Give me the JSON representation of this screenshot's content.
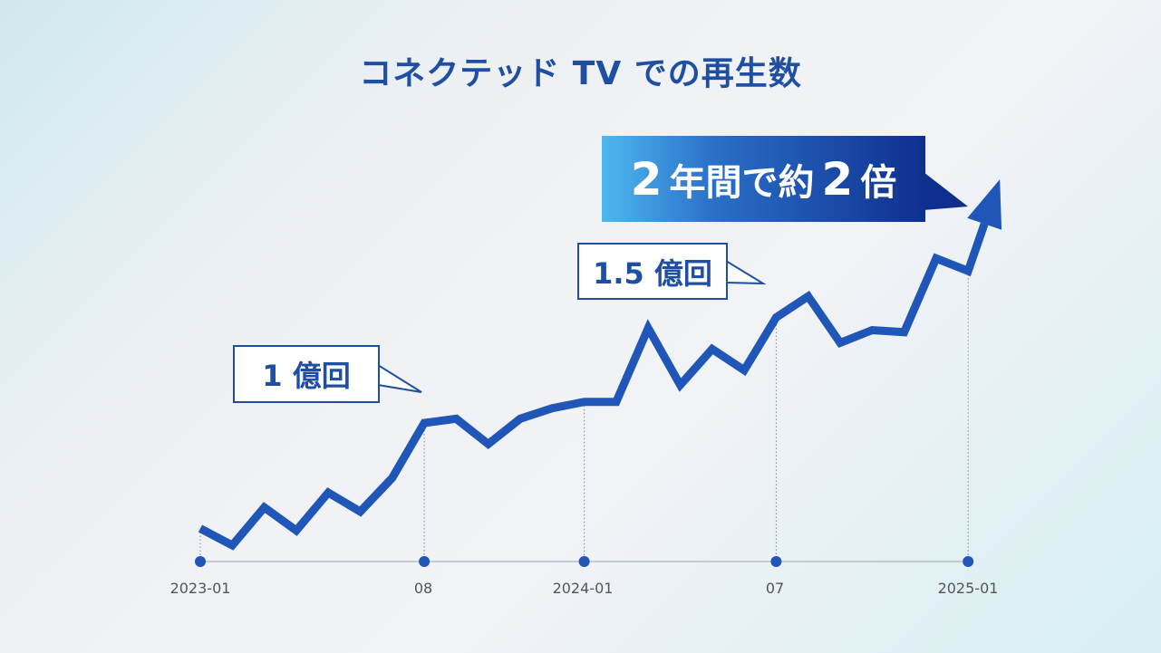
{
  "title": "コネクテッド TV での再生数",
  "chart_data": {
    "type": "line",
    "title": "コネクテッド TV での再生数",
    "xlabel": "",
    "ylabel": "",
    "x_ticks": [
      "2023-01",
      "08",
      "2024-01",
      "07",
      "2025-01"
    ],
    "x": [
      "2023-01",
      "2023-02",
      "2023-03",
      "2023-04",
      "2023-05",
      "2023-06",
      "2023-07",
      "2023-08",
      "2023-09",
      "2023-10",
      "2023-11",
      "2023-12",
      "2024-01",
      "2024-02",
      "2024-03",
      "2024-04",
      "2024-05",
      "2024-06",
      "2024-07",
      "2024-08",
      "2024-09",
      "2024-10",
      "2024-11",
      "2024-12",
      "2025-01"
    ],
    "series": [
      {
        "values": [
          0.5,
          0.42,
          0.6,
          0.49,
          0.67,
          0.58,
          0.74,
          1.0,
          1.02,
          0.9,
          1.02,
          1.07,
          1.1,
          1.1,
          1.45,
          1.18,
          1.35,
          1.25,
          1.5,
          1.6,
          1.38,
          1.44,
          1.43,
          1.78,
          1.72
        ]
      }
    ],
    "arrow_end_value": 2.13,
    "annotations": [
      {
        "text": "1 億回",
        "x": "2023-08"
      },
      {
        "text": "1.5 億回",
        "x": "2024-07"
      }
    ],
    "headline": {
      "part1": "2",
      "part2": "年間で約",
      "part3": "2",
      "part4": "倍"
    },
    "color": "#1f56b8",
    "grid": false
  }
}
